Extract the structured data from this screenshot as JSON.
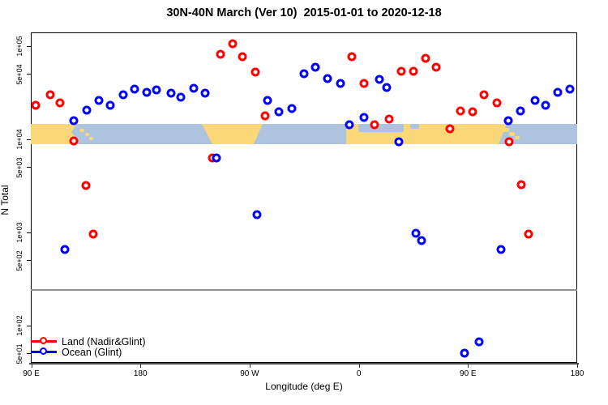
{
  "title": "30N-40N March (Ver 10)  2015-01-01 to 2020-12-18",
  "chart_data": {
    "type": "scatter",
    "title": "30N-40N March (Ver 10)  2015-01-01 to 2020-12-18",
    "xlabel": "Longitude (deg E)",
    "ylabel": "N Total",
    "x_axis": {
      "range_deg": [
        90,
        540
      ],
      "ticks": [
        90,
        180,
        270,
        360,
        450,
        540
      ],
      "tick_labels": [
        "90 E",
        "180",
        "90 W",
        "0",
        "90 E",
        "180"
      ]
    },
    "y_axis": {
      "scale": "log10",
      "ticks": [
        100000,
        50000,
        10000,
        5000,
        1000,
        500,
        100,
        50
      ],
      "tick_labels": [
        "1e+05",
        "5e+04",
        "1e+04",
        "5e+03",
        "1e+03",
        "5e+02",
        "1e+02",
        "5e+01"
      ]
    },
    "divider_value": 250,
    "legend": [
      {
        "label": "Land (Nadir&Glint)",
        "color": "#ff0000"
      },
      {
        "label": "Ocean (Glint)",
        "color": "#0000ff"
      }
    ],
    "series": [
      {
        "name": "Land (Nadir&Glint)",
        "color": "#ff0000",
        "points": [
          {
            "lon": 94,
            "n": 23200
          },
          {
            "lon": 106,
            "n": 30000
          },
          {
            "lon": 114,
            "n": 24600
          },
          {
            "lon": 125,
            "n": 9600
          },
          {
            "lon": 135,
            "n": 3190
          },
          {
            "lon": 141,
            "n": 960
          },
          {
            "lon": 239,
            "n": 6310
          },
          {
            "lon": 246,
            "n": 81800
          },
          {
            "lon": 256,
            "n": 106000
          },
          {
            "lon": 264,
            "n": 77100
          },
          {
            "lon": 275,
            "n": 52700
          },
          {
            "lon": 283,
            "n": 17900
          },
          {
            "lon": 354,
            "n": 77100
          },
          {
            "lon": 364,
            "n": 39800
          },
          {
            "lon": 373,
            "n": 14350
          },
          {
            "lon": 385,
            "n": 16500
          },
          {
            "lon": 395,
            "n": 53700
          },
          {
            "lon": 405,
            "n": 53700
          },
          {
            "lon": 415,
            "n": 74000
          },
          {
            "lon": 424,
            "n": 59400
          },
          {
            "lon": 435,
            "n": 12970
          },
          {
            "lon": 444,
            "n": 20100
          },
          {
            "lon": 454,
            "n": 19800
          },
          {
            "lon": 463,
            "n": 30000
          },
          {
            "lon": 474,
            "n": 24600
          },
          {
            "lon": 484,
            "n": 9400
          },
          {
            "lon": 494,
            "n": 3260
          },
          {
            "lon": 500,
            "n": 960
          }
        ]
      },
      {
        "name": "Ocean (Glint)",
        "color": "#0000ff",
        "points": [
          {
            "lon": 118,
            "n": 656
          },
          {
            "lon": 125,
            "n": 15850
          },
          {
            "lon": 136,
            "n": 20550
          },
          {
            "lon": 146,
            "n": 26100
          },
          {
            "lon": 155,
            "n": 23200
          },
          {
            "lon": 166,
            "n": 30000
          },
          {
            "lon": 175,
            "n": 34600
          },
          {
            "lon": 185,
            "n": 31900
          },
          {
            "lon": 193,
            "n": 33900
          },
          {
            "lon": 205,
            "n": 31300
          },
          {
            "lon": 213,
            "n": 28300
          },
          {
            "lon": 224,
            "n": 35300
          },
          {
            "lon": 233,
            "n": 31300
          },
          {
            "lon": 243,
            "n": 6310
          },
          {
            "lon": 276,
            "n": 1550
          },
          {
            "lon": 285,
            "n": 26100
          },
          {
            "lon": 294,
            "n": 19800
          },
          {
            "lon": 305,
            "n": 21400
          },
          {
            "lon": 315,
            "n": 50600
          },
          {
            "lon": 324,
            "n": 59400
          },
          {
            "lon": 334,
            "n": 44900
          },
          {
            "lon": 345,
            "n": 39800
          },
          {
            "lon": 352,
            "n": 14350
          },
          {
            "lon": 364,
            "n": 17200
          },
          {
            "lon": 377,
            "n": 44000
          },
          {
            "lon": 383,
            "n": 36000
          },
          {
            "lon": 393,
            "n": 9400
          },
          {
            "lon": 407,
            "n": 980
          },
          {
            "lon": 412,
            "n": 818
          },
          {
            "lon": 447,
            "n": 50.6
          },
          {
            "lon": 459,
            "n": 67
          },
          {
            "lon": 477,
            "n": 656
          },
          {
            "lon": 483,
            "n": 15850
          },
          {
            "lon": 493,
            "n": 20100
          },
          {
            "lon": 505,
            "n": 26100
          },
          {
            "lon": 514,
            "n": 23200
          },
          {
            "lon": 524,
            "n": 31900
          },
          {
            "lon": 534,
            "n": 34600
          }
        ]
      }
    ],
    "map_band": {
      "ocean_color": "#adc3de",
      "land_color": "#fad878",
      "land_polys": [
        [
          [
            0,
            0
          ],
          [
            57,
            0
          ],
          [
            50,
            10
          ],
          [
            56,
            18
          ],
          [
            48,
            25
          ],
          [
            0,
            25
          ]
        ],
        [
          [
            211,
            0
          ],
          [
            286,
            0
          ],
          [
            275,
            25
          ],
          [
            224,
            25
          ]
        ],
        [
          [
            389,
            0
          ],
          [
            587,
            0
          ],
          [
            577,
            25
          ],
          [
            389,
            25
          ]
        ]
      ],
      "land_islands": [
        [
          60,
          6,
          6,
          4
        ],
        [
          67,
          11,
          5,
          4
        ],
        [
          72,
          16,
          5,
          4
        ],
        [
          582,
          5,
          8,
          5
        ],
        [
          590,
          10,
          7,
          5
        ],
        [
          597,
          15,
          6,
          4
        ]
      ],
      "sea_rects": [
        [
          404,
          0,
          56,
          10
        ],
        [
          468,
          0,
          11,
          6
        ]
      ]
    }
  }
}
